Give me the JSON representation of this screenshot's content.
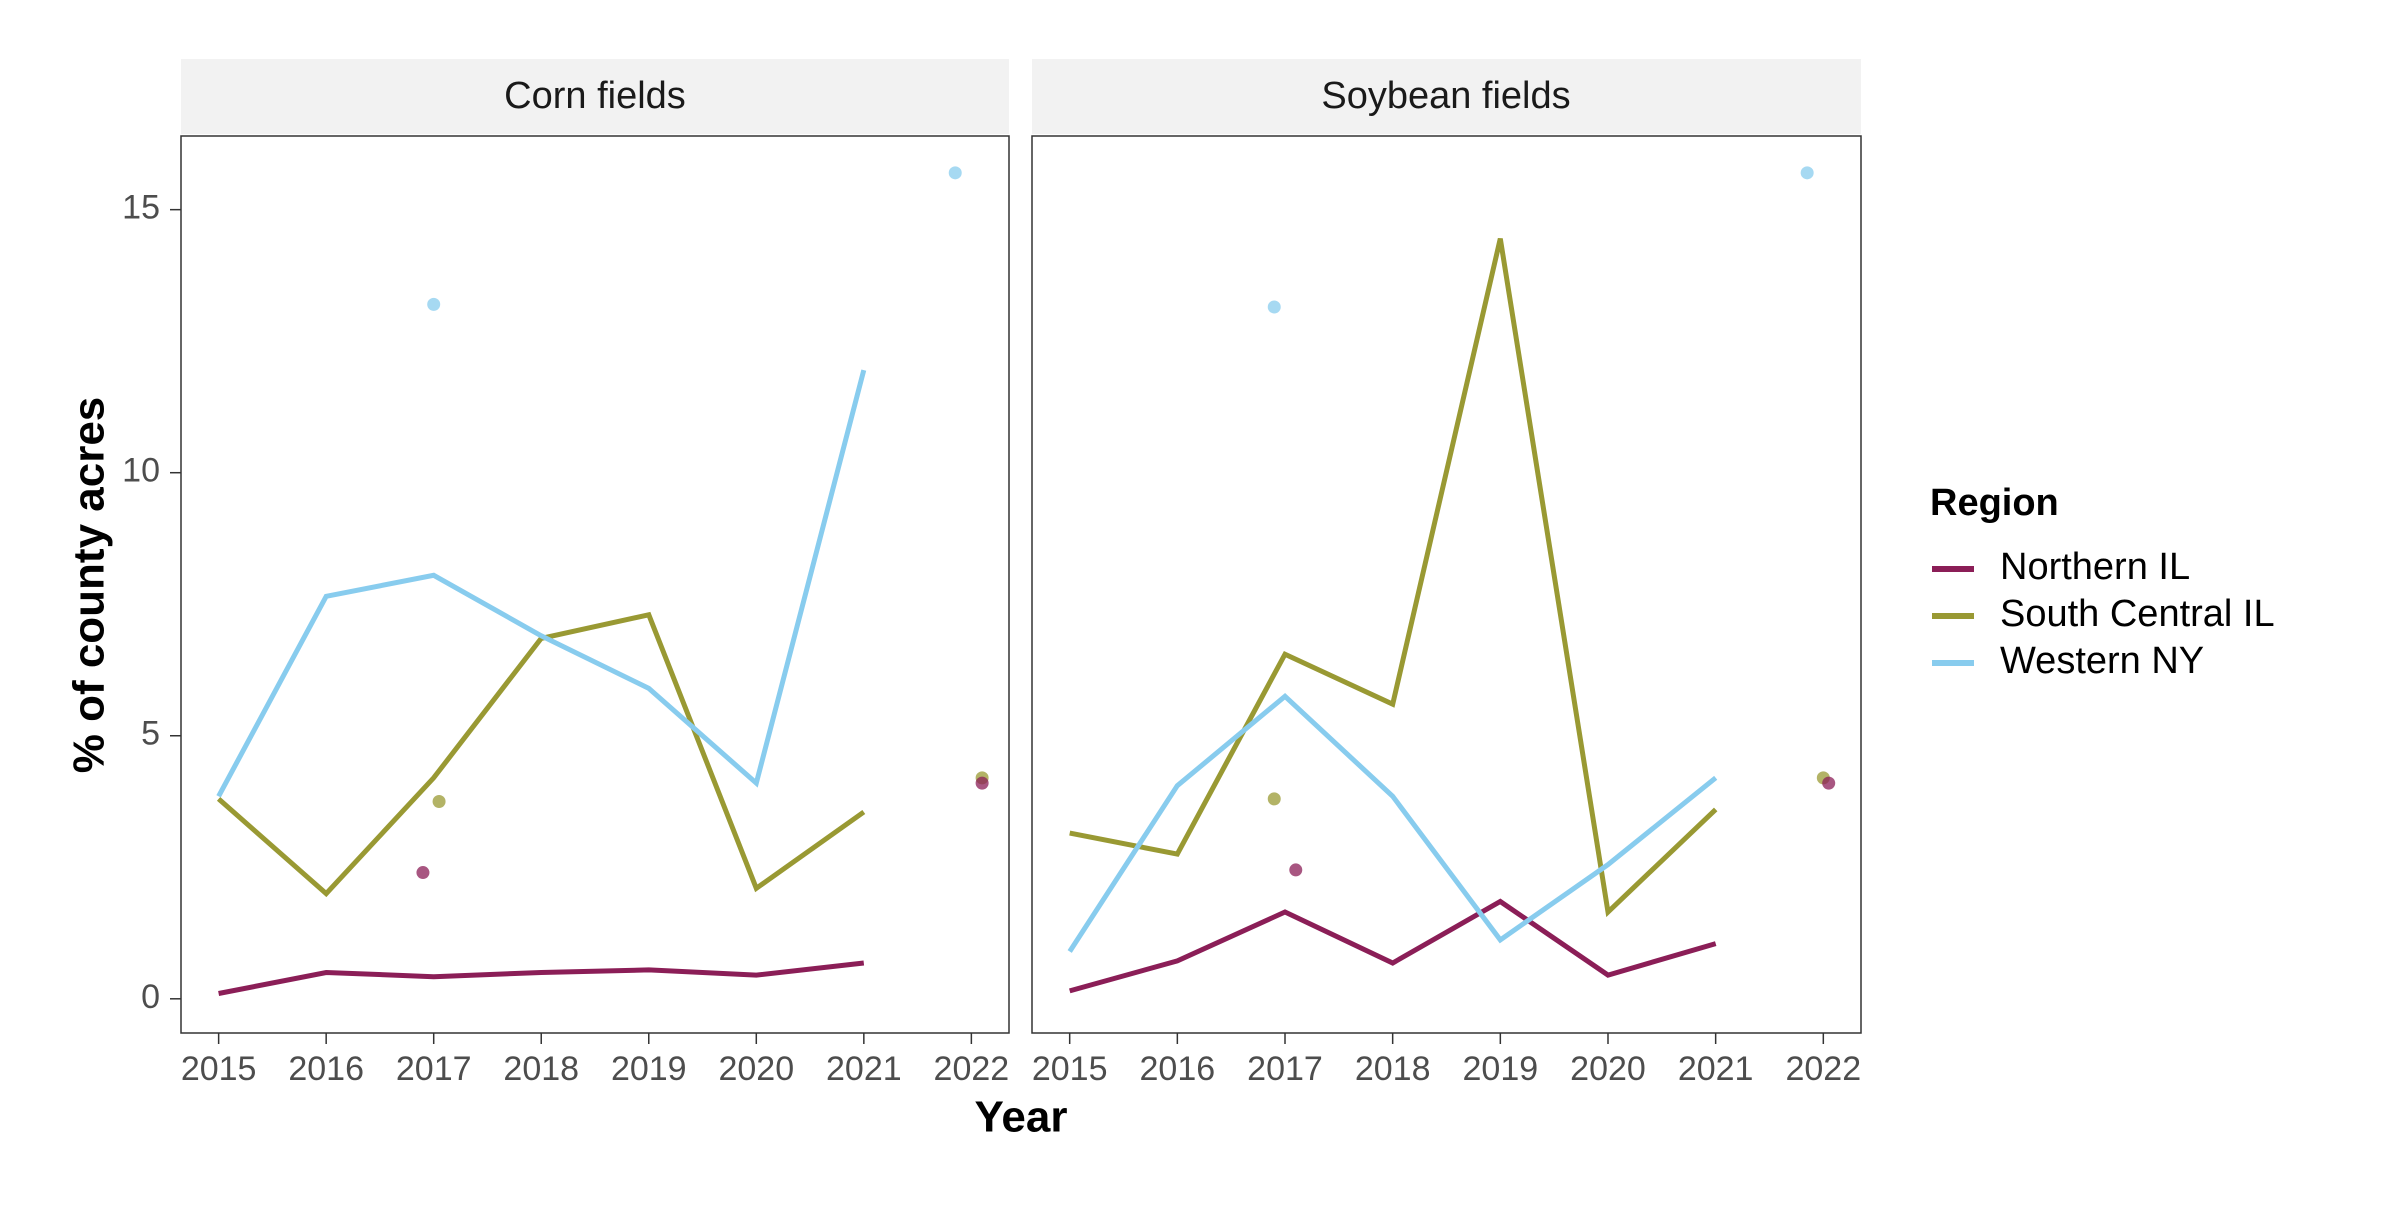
{
  "chart_data": {
    "type": "line",
    "ylabel": "% of county acres",
    "xlabel": "Year",
    "x_ticks": [
      "2015",
      "2016",
      "2017",
      "2018",
      "2019",
      "2020",
      "2021",
      "2022"
    ],
    "y_ticks": [
      "0",
      "5",
      "10",
      "15"
    ],
    "ylim": [
      -0.65,
      16.4
    ],
    "xlim": [
      2014.65,
      2022.35
    ],
    "grid": false,
    "legend": {
      "title": "Region",
      "position": "right",
      "items": [
        "Northern IL",
        "South Central IL",
        "Western NY"
      ]
    },
    "colors": {
      "Northern IL": "#8B1E57",
      "South Central IL": "#999933",
      "Western NY": "#88CCEE"
    },
    "panels": [
      {
        "title": "Corn fields",
        "lines": [
          {
            "name": "Northern IL",
            "x": [
              2015,
              2016,
              2017,
              2018,
              2019,
              2020,
              2021
            ],
            "y": [
              0.1,
              0.5,
              0.42,
              0.5,
              0.55,
              0.45,
              0.68
            ]
          },
          {
            "name": "South Central IL",
            "x": [
              2015,
              2016,
              2017,
              2018,
              2019,
              2020,
              2021
            ],
            "y": [
              3.8,
              2.0,
              4.2,
              6.85,
              7.3,
              2.1,
              3.55
            ]
          },
          {
            "name": "Western NY",
            "x": [
              2015,
              2016,
              2017,
              2018,
              2019,
              2020,
              2021
            ],
            "y": [
              3.85,
              7.65,
              8.05,
              6.9,
              5.9,
              4.1,
              11.95
            ]
          }
        ],
        "points": [
          {
            "name": "Northern IL",
            "x": 2016.9,
            "y": 2.4
          },
          {
            "name": "South Central IL",
            "x": 2017.05,
            "y": 3.75
          },
          {
            "name": "Western NY",
            "x": 2017.0,
            "y": 13.2
          },
          {
            "name": "Western NY",
            "x": 2021.85,
            "y": 15.7
          },
          {
            "name": "South Central IL",
            "x": 2022.1,
            "y": 4.2
          },
          {
            "name": "Northern IL",
            "x": 2022.1,
            "y": 4.1
          }
        ]
      },
      {
        "title": "Soybean fields",
        "lines": [
          {
            "name": "Northern IL",
            "x": [
              2015,
              2016,
              2017,
              2018,
              2019,
              2020,
              2021
            ],
            "y": [
              0.15,
              0.72,
              1.65,
              0.68,
              1.85,
              0.45,
              1.05
            ]
          },
          {
            "name": "South Central IL",
            "x": [
              2015,
              2016,
              2017,
              2018,
              2019,
              2020,
              2021
            ],
            "y": [
              3.15,
              2.75,
              6.55,
              5.6,
              14.45,
              1.65,
              3.6
            ]
          },
          {
            "name": "Western NY",
            "x": [
              2015,
              2016,
              2017,
              2018,
              2019,
              2020,
              2021
            ],
            "y": [
              0.9,
              4.05,
              5.75,
              3.85,
              1.12,
              2.55,
              4.2
            ]
          }
        ],
        "points": [
          {
            "name": "Northern IL",
            "x": 2017.1,
            "y": 2.45
          },
          {
            "name": "South Central IL",
            "x": 2016.9,
            "y": 3.8
          },
          {
            "name": "Western NY",
            "x": 2016.9,
            "y": 13.15
          },
          {
            "name": "Western NY",
            "x": 2021.85,
            "y": 15.7
          },
          {
            "name": "South Central IL",
            "x": 2022.0,
            "y": 4.2
          },
          {
            "name": "Northern IL",
            "x": 2022.05,
            "y": 4.1
          }
        ]
      }
    ]
  }
}
